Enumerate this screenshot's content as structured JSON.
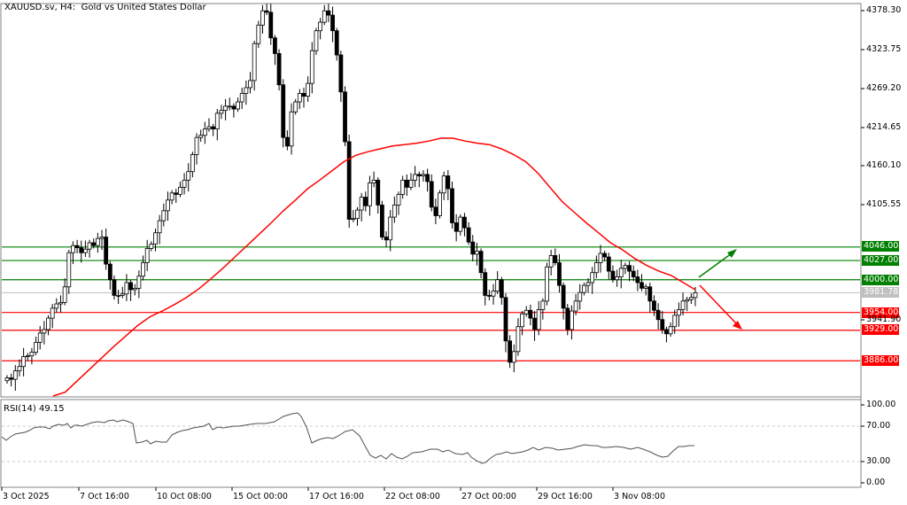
{
  "header": {
    "title": "XAUUSD.sv, H4:  Gold vs United States Dollar"
  },
  "rsi": {
    "label": "RSI(14) 49.15",
    "levels": [
      "100.00",
      "70.00",
      "30.00",
      "0.00"
    ]
  },
  "price_axis": {
    "labels": [
      "4378.30",
      "4323.75",
      "4269.20",
      "4214.65",
      "4160.10",
      "4105.55"
    ],
    "current_price": "3981.78",
    "bid_marker": "3941.90"
  },
  "levels": {
    "resistance": [
      {
        "price": "4046.00",
        "color": "#008000"
      },
      {
        "price": "4027.00",
        "color": "#008000"
      },
      {
        "price": "4000.00",
        "color": "#008000"
      }
    ],
    "support": [
      {
        "price": "3954.00",
        "color": "#ff0000"
      },
      {
        "price": "3929.00",
        "color": "#ff0000"
      },
      {
        "price": "3886.00",
        "color": "#ff0000"
      }
    ]
  },
  "time_axis": {
    "labels": [
      "3 Oct 2025",
      "7 Oct 16:00",
      "10 Oct 08:00",
      "15 Oct 00:00",
      "17 Oct 16:00",
      "22 Oct 08:00",
      "27 Oct 00:00",
      "29 Oct 16:00",
      "3 Nov 08:00"
    ]
  },
  "colors": {
    "bull": "#ffffff",
    "bear": "#000000",
    "ma": "#ff0000",
    "support": "#ff0000",
    "resistance": "#008000",
    "current_price_line": "#c0c0c0",
    "up_arrow": "#008000",
    "down_arrow": "#ff0000"
  },
  "chart_data": {
    "type": "candlestick",
    "title": "XAUUSD.sv, H4: Gold vs United States Dollar",
    "xlabel": "",
    "ylabel": "",
    "ylim": [
      3830,
      4385
    ],
    "x_ticks": [
      "3 Oct 2025",
      "7 Oct 16:00",
      "10 Oct 08:00",
      "15 Oct 00:00",
      "17 Oct 16:00",
      "22 Oct 08:00",
      "27 Oct 00:00",
      "29 Oct 16:00",
      "3 Nov 08:00"
    ],
    "y_ticks": [
      4378.3,
      4323.75,
      4269.2,
      4214.65,
      4160.1,
      4105.55
    ],
    "horizontal_levels": [
      4046.0,
      4027.0,
      4000.0,
      3954.0,
      3929.0,
      3886.0
    ],
    "current_price": 3981.78,
    "series": [
      {
        "name": "close",
        "values": [
          3862,
          3860,
          3872,
          3878,
          3892,
          3893,
          3898,
          3912,
          3925,
          3930,
          3946,
          3960,
          3966,
          3968,
          3990,
          4038,
          4048,
          4045,
          4038,
          4043,
          4052,
          4048,
          4058,
          4060,
          4022,
          4000,
          3978,
          3978,
          3980,
          3996,
          3986,
          3988,
          4005,
          4024,
          4044,
          4050,
          4066,
          4083,
          4097,
          4112,
          4122,
          4120,
          4130,
          4140,
          4152,
          4176,
          4200,
          4203,
          4212,
          4215,
          4212,
          4234,
          4238,
          4244,
          4244,
          4240,
          4250,
          4262,
          4270,
          4280,
          4332,
          4358,
          4378,
          4376,
          4340,
          4318,
          4274,
          4200,
          4188,
          4236,
          4250,
          4262,
          4258,
          4276,
          4322,
          4350,
          4362,
          4378,
          4372,
          4350,
          4316,
          4264,
          4194,
          4085,
          4086,
          4098,
          4116,
          4104,
          4136,
          4140,
          4105,
          4060,
          4056,
          4088,
          4105,
          4120,
          4140,
          4130,
          4140,
          4148,
          4146,
          4148,
          4138,
          4102,
          4090,
          4122,
          4146,
          4128,
          4080,
          4068,
          4088,
          4073,
          4053,
          4036,
          4040,
          4010,
          3978,
          3977,
          3984,
          4000,
          3975,
          3914,
          3884,
          3899,
          3934,
          3952,
          3957,
          3946,
          3930,
          3958,
          3970,
          4018,
          4034,
          4024,
          3992,
          3960,
          3930,
          3956,
          3970,
          3982,
          3992,
          3996,
          4010,
          4024,
          4037,
          4032,
          4012,
          4000,
          4004,
          4016,
          4020,
          4012,
          4004,
          3996,
          3988,
          3990,
          3970,
          3957,
          3944,
          3930,
          3924,
          3934,
          3950,
          3958,
          3970,
          3972,
          3975,
          3981.78
        ]
      },
      {
        "name": "MA",
        "values": [
          3826,
          3842,
          3858,
          3874,
          3890,
          3906,
          3921,
          3936,
          3948,
          3956,
          3965,
          3975,
          3987,
          4001,
          4016,
          4032,
          4048,
          4064,
          4080,
          4097,
          4112,
          4128,
          4140,
          4153,
          4166,
          4175,
          4180,
          4184,
          4188,
          4190,
          4192,
          4195,
          4199,
          4199,
          4195,
          4192,
          4190,
          4184,
          4176,
          4166,
          4150,
          4130,
          4110,
          4095,
          4080,
          4066,
          4052,
          4042,
          4030,
          4020,
          4012,
          4006,
          3996,
          3986
        ]
      }
    ],
    "rsi_series": {
      "name": "RSI(14)",
      "last": 49.15,
      "ylim": [
        0,
        100
      ],
      "levels": [
        70,
        30
      ]
    }
  }
}
